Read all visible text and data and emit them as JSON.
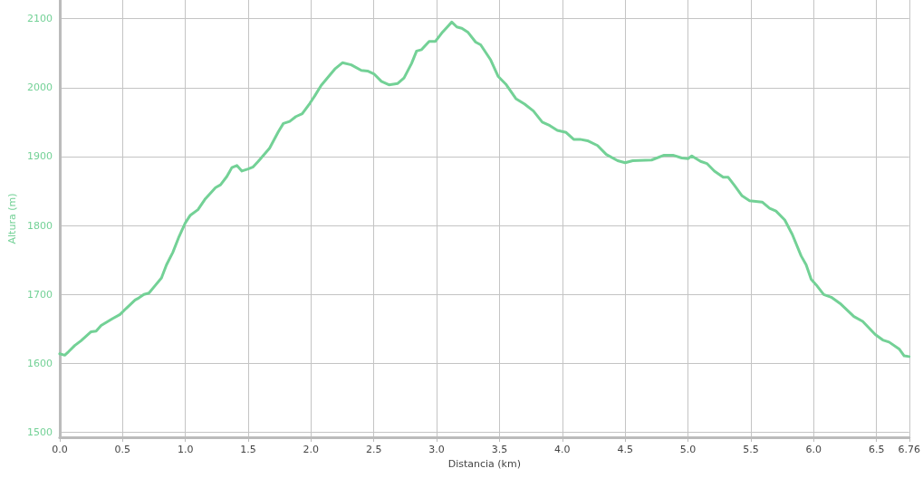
{
  "chart_data": {
    "type": "line",
    "xlabel": "Distancia (km)",
    "ylabel": "Altura (m)",
    "x": [
      0,
      0.04,
      0.07,
      0.12,
      0.17,
      0.25,
      0.29,
      0.33,
      0.42,
      0.48,
      0.53,
      0.6,
      0.63,
      0.67,
      0.71,
      0.76,
      0.81,
      0.85,
      0.9,
      0.95,
      1.0,
      1.04,
      1.1,
      1.16,
      1.24,
      1.28,
      1.33,
      1.37,
      1.41,
      1.45,
      1.5,
      1.54,
      1.58,
      1.67,
      1.74,
      1.78,
      1.83,
      1.88,
      1.93,
      1.99,
      2.03,
      2.08,
      2.14,
      2.19,
      2.25,
      2.32,
      2.4,
      2.45,
      2.5,
      2.56,
      2.62,
      2.69,
      2.74,
      2.8,
      2.84,
      2.88,
      2.94,
      2.99,
      3.04,
      3.08,
      3.12,
      3.16,
      3.2,
      3.25,
      3.31,
      3.35,
      3.43,
      3.49,
      3.55,
      3.63,
      3.7,
      3.77,
      3.84,
      3.9,
      3.96,
      4.03,
      4.09,
      4.14,
      4.2,
      4.28,
      4.35,
      4.44,
      4.5,
      4.56,
      4.71,
      4.81,
      4.88,
      4.95,
      5.0,
      5.03,
      5.1,
      5.15,
      5.21,
      5.28,
      5.32,
      5.37,
      5.43,
      5.49,
      5.59,
      5.65,
      5.7,
      5.77,
      5.83,
      5.9,
      5.94,
      5.98,
      6.02,
      6.08,
      6.14,
      6.21,
      6.32,
      6.39,
      6.49,
      6.55,
      6.6,
      6.68,
      6.72,
      6.76
    ],
    "series": [
      {
        "color": "#73d196",
        "values": [
          1614,
          1612,
          1617,
          1626,
          1633,
          1646,
          1647,
          1655,
          1665,
          1671,
          1680,
          1692,
          1695,
          1700,
          1702,
          1713,
          1724,
          1743,
          1761,
          1784,
          1804,
          1815,
          1823,
          1839,
          1855,
          1859,
          1871,
          1884,
          1887,
          1879,
          1882,
          1885,
          1893,
          1912,
          1936,
          1948,
          1951,
          1958,
          1962,
          1977,
          1988,
          2003,
          2016,
          2027,
          2036,
          2033,
          2025,
          2024,
          2020,
          2009,
          2004,
          2006,
          2014,
          2035,
          2053,
          2055,
          2067,
          2067,
          2079,
          2087,
          2095,
          2088,
          2086,
          2080,
          2066,
          2062,
          2040,
          2016,
          2005,
          1984,
          1976,
          1966,
          1950,
          1945,
          1938,
          1935,
          1925,
          1925,
          1923,
          1916,
          1903,
          1894,
          1891,
          1894,
          1895,
          1902,
          1902,
          1898,
          1897,
          1901,
          1893,
          1890,
          1879,
          1870,
          1870,
          1858,
          1843,
          1836,
          1834,
          1825,
          1821,
          1808,
          1787,
          1756,
          1743,
          1722,
          1714,
          1700,
          1696,
          1687,
          1668,
          1661,
          1642,
          1634,
          1631,
          1621,
          1611,
          1610
        ]
      }
    ],
    "xlim": [
      0,
      6.76
    ],
    "xticks": [
      {
        "value": 0,
        "label": "0.0"
      },
      0.5,
      {
        "value": 1,
        "label": "1.0"
      },
      1.5,
      {
        "value": 2,
        "label": "2.0"
      },
      2.5,
      {
        "value": 3,
        "label": "3.0"
      },
      3.5,
      {
        "value": 4,
        "label": "4.0"
      },
      4.5,
      {
        "value": 5,
        "label": "5.0"
      },
      5.5,
      {
        "value": 6,
        "label": "6.0"
      },
      6.5,
      6.76
    ],
    "ylim": [
      1493,
      2127
    ],
    "yticks": [
      1500,
      1600,
      1700,
      1800,
      1900,
      2000,
      2100
    ],
    "grid": true,
    "marker": "none",
    "line_style": "solid"
  }
}
